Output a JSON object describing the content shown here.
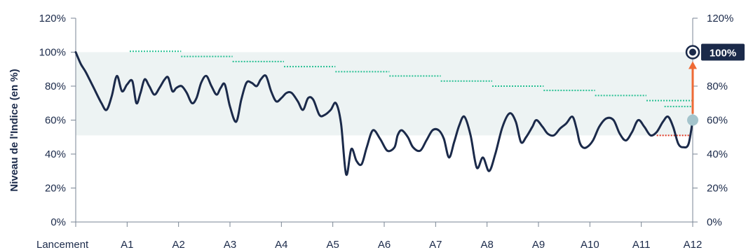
{
  "chart_data": {
    "type": "line",
    "ylabel": "Niveau de l'Indice (en %)",
    "ylim": [
      0,
      120
    ],
    "y_ticks": [
      "0%",
      "20%",
      "40%",
      "60%",
      "80%",
      "100%",
      "120%"
    ],
    "x_ticks": [
      "Lancement",
      "A1",
      "A2",
      "A3",
      "A4",
      "A5",
      "A6",
      "A7",
      "A8",
      "A9",
      "A10",
      "A11",
      "A12"
    ],
    "band": [
      51,
      100
    ],
    "series": [
      {
        "x": [
          0,
          0.1,
          0.2,
          0.35,
          0.5,
          0.6,
          0.7,
          0.8,
          0.9,
          1.0,
          1.1,
          1.18,
          1.26,
          1.34,
          1.43,
          1.53,
          1.63,
          1.73,
          1.8,
          1.88,
          1.96,
          2.06,
          2.16,
          2.26,
          2.35,
          2.44,
          2.54,
          2.64,
          2.74,
          2.82,
          2.9,
          3.0,
          3.12,
          3.22,
          3.32,
          3.42,
          3.52,
          3.6,
          3.7,
          3.8,
          3.9,
          4.0,
          4.1,
          4.2,
          4.32,
          4.42,
          4.52,
          4.62,
          4.74,
          4.84,
          4.96,
          5.06,
          5.16,
          5.26,
          5.36,
          5.46,
          5.56,
          5.66,
          5.78,
          5.92,
          6.06,
          6.2,
          6.26,
          6.34,
          6.46,
          6.56,
          6.7,
          6.82,
          6.94,
          7.06,
          7.16,
          7.26,
          7.36,
          7.46,
          7.56,
          7.68,
          7.8,
          7.92,
          8.04,
          8.16,
          8.3,
          8.44,
          8.56,
          8.66,
          8.76,
          8.88,
          8.96,
          9.08,
          9.18,
          9.3,
          9.42,
          9.54,
          9.66,
          9.74,
          9.8,
          9.86,
          9.94,
          10.06,
          10.18,
          10.32,
          10.46,
          10.58,
          10.7,
          10.82,
          10.94,
          11.06,
          11.18,
          11.3,
          11.42,
          11.52,
          11.62,
          11.72,
          11.82,
          11.92,
          12.0
        ],
        "y": [
          100,
          93,
          88,
          79,
          70,
          66,
          74,
          86,
          77,
          81,
          83,
          70,
          76,
          84,
          80,
          75,
          79,
          84,
          85,
          77,
          79,
          80,
          76,
          70,
          73,
          82,
          86,
          80,
          75,
          79,
          81,
          68,
          59,
          72,
          82,
          82,
          80,
          84,
          86,
          77,
          71,
          73,
          76,
          76,
          71,
          66,
          73,
          72,
          63,
          63,
          66,
          70,
          58,
          28,
          43,
          36,
          34,
          44,
          54,
          49,
          42,
          44,
          51,
          54,
          50,
          44,
          42,
          48,
          54,
          54,
          49,
          38,
          47,
          57,
          62,
          51,
          32,
          38,
          30,
          40,
          56,
          64,
          59,
          47,
          50,
          56,
          60,
          56,
          52,
          51,
          55,
          58,
          62,
          55,
          47,
          44,
          44,
          48,
          56,
          61,
          60,
          52,
          48,
          53,
          60,
          56,
          51,
          53,
          59,
          62,
          56,
          46,
          44,
          46,
          60
        ]
      }
    ],
    "barriers": [
      {
        "x": [
          1.05,
          2.05
        ],
        "y": 100.5
      },
      {
        "x": [
          2.05,
          3.05
        ],
        "y": 97.5
      },
      {
        "x": [
          3.05,
          4.05
        ],
        "y": 94.5
      },
      {
        "x": [
          4.05,
          5.05
        ],
        "y": 91.5
      },
      {
        "x": [
          5.05,
          6.1
        ],
        "y": 88.5
      },
      {
        "x": [
          6.1,
          7.1
        ],
        "y": 86
      },
      {
        "x": [
          7.1,
          8.1
        ],
        "y": 83
      },
      {
        "x": [
          8.1,
          9.1
        ],
        "y": 80
      },
      {
        "x": [
          9.1,
          10.1
        ],
        "y": 77.5
      },
      {
        "x": [
          10.1,
          11.1
        ],
        "y": 74.5
      },
      {
        "x": [
          11.1,
          12.0
        ],
        "y": 71.5
      },
      {
        "x": [
          11.45,
          12.0
        ],
        "y": 68
      }
    ],
    "red_barrier": {
      "x": [
        11.3,
        11.95
      ],
      "y": 51
    },
    "final_point": {
      "x": 12,
      "y": 60
    },
    "target_point": {
      "x": 12,
      "y": 100
    },
    "target_label": "100%",
    "colors": {
      "line": "#1b2a4a",
      "band": "#edf3f3",
      "barrier": "#27c093",
      "red_barrier": "#e0341f",
      "arrow": "#ee6a35",
      "final_point": "#a4c4cc",
      "axis": "#7a8694",
      "badge": "#1b2a4a"
    },
    "grid": false,
    "legend": "none"
  }
}
